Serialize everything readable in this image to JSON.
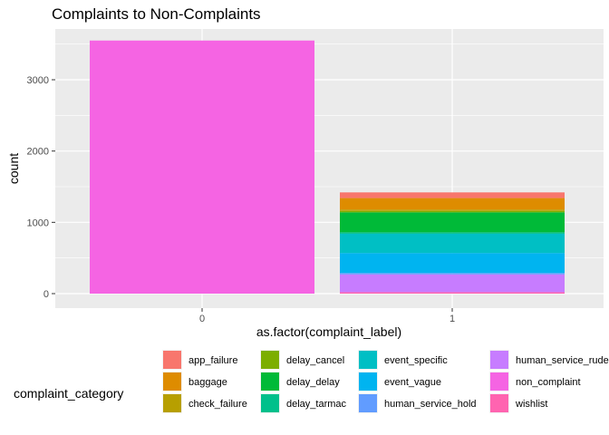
{
  "chart_data": {
    "type": "bar",
    "stacked": true,
    "title": "Complaints to Non-Complaints",
    "xlabel": "as.factor(complaint_label)",
    "ylabel": "count",
    "categories": [
      "0",
      "1"
    ],
    "ylim": [
      0,
      3700
    ],
    "yticks": [
      0,
      1000,
      2000,
      3000
    ],
    "yticklabels": [
      "0",
      "1000",
      "2000",
      "3000"
    ],
    "grid": true,
    "legend": {
      "title": "complaint_category",
      "position": "bottom"
    },
    "series": [
      {
        "name": "app_failure",
        "color": "#F8766D",
        "values": [
          0,
          80
        ]
      },
      {
        "name": "baggage",
        "color": "#DE8C00",
        "values": [
          0,
          160
        ]
      },
      {
        "name": "check_failure",
        "color": "#B79F00",
        "values": [
          0,
          20
        ]
      },
      {
        "name": "delay_cancel",
        "color": "#7CAE00",
        "values": [
          0,
          20
        ]
      },
      {
        "name": "delay_delay",
        "color": "#00BA38",
        "values": [
          0,
          280
        ]
      },
      {
        "name": "delay_tarmac",
        "color": "#00C08B",
        "values": [
          0,
          20
        ]
      },
      {
        "name": "event_specific",
        "color": "#00BFC4",
        "values": [
          0,
          270
        ]
      },
      {
        "name": "event_vague",
        "color": "#00B4F0",
        "values": [
          0,
          280
        ]
      },
      {
        "name": "human_service_hold",
        "color": "#619CFF",
        "values": [
          0,
          20
        ]
      },
      {
        "name": "human_service_rude",
        "color": "#C77CFF",
        "values": [
          0,
          250
        ]
      },
      {
        "name": "non_complaint",
        "color": "#F564E3",
        "values": [
          3550,
          0
        ]
      },
      {
        "name": "wishlist",
        "color": "#FF64B0",
        "values": [
          0,
          20
        ]
      }
    ]
  }
}
